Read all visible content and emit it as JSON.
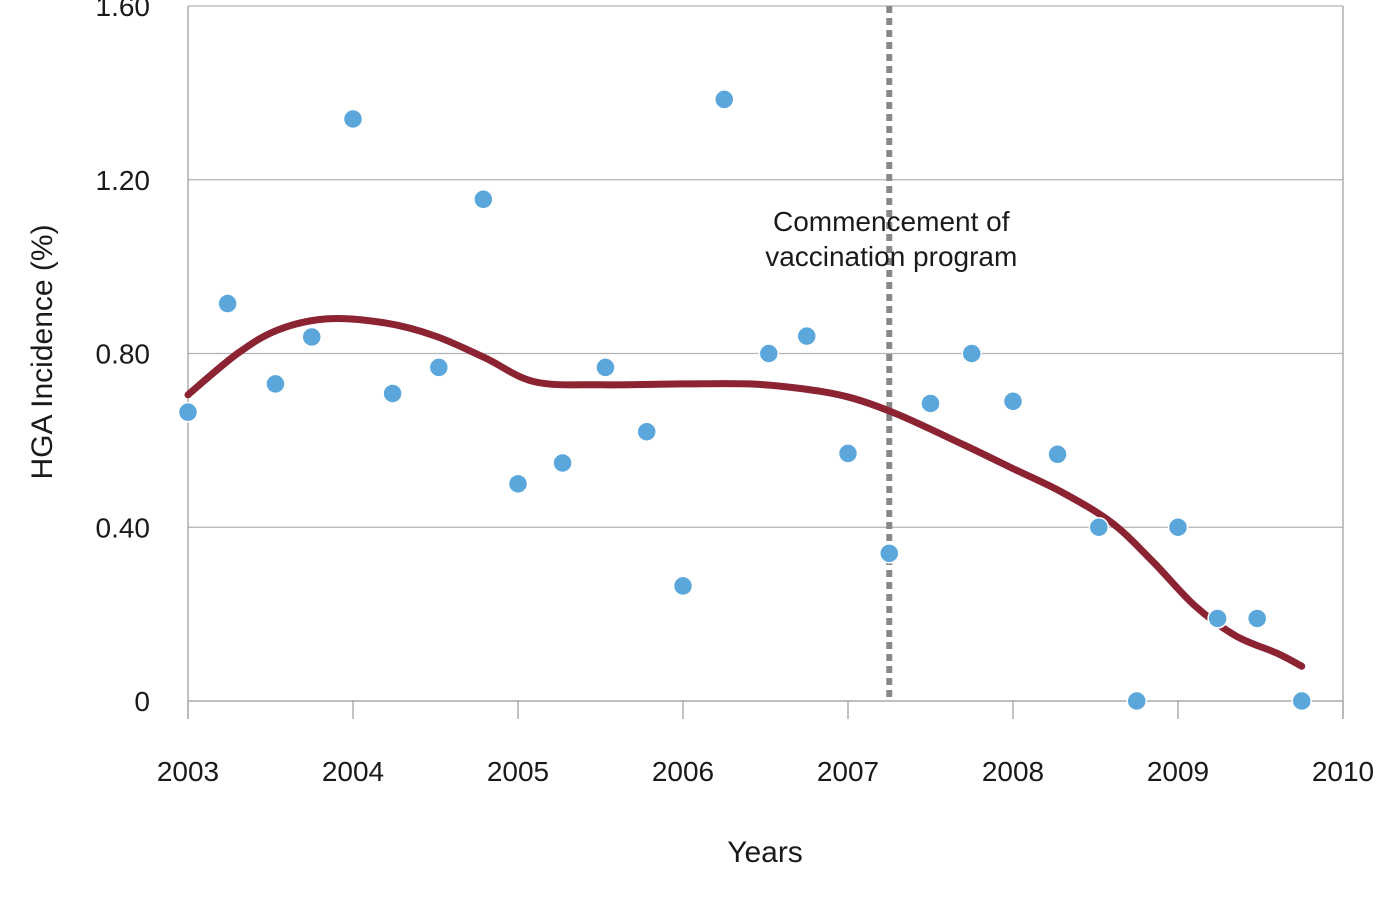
{
  "chart_data": {
    "type": "scatter",
    "title": "",
    "xlabel": "Years",
    "ylabel": "HGA Incidence (%)",
    "xlim": [
      2003,
      2010
    ],
    "ylim": [
      0,
      1.6
    ],
    "x_ticks": [
      2003,
      2004,
      2005,
      2006,
      2007,
      2008,
      2009,
      2010
    ],
    "x_tick_labels": [
      "2003",
      "2004",
      "2005",
      "2006",
      "2007",
      "2008",
      "2009",
      "2010"
    ],
    "y_ticks": [
      0,
      0.4,
      0.8,
      1.2,
      1.6
    ],
    "y_tick_labels": [
      "0",
      "0.40",
      "0.80",
      "1.20",
      "1.60"
    ],
    "grid": true,
    "colors": {
      "points": "#5ba7dc",
      "trend": "#8b2332",
      "vline": "#888888",
      "grid": "#b3b3b3",
      "axis": "#999999"
    },
    "series": [
      {
        "type": "scatter",
        "points": [
          [
            2003.0,
            0.665
          ],
          [
            2003.24,
            0.915
          ],
          [
            2003.53,
            0.73
          ],
          [
            2003.75,
            0.838
          ],
          [
            2004.0,
            1.34
          ],
          [
            2004.24,
            0.708
          ],
          [
            2004.52,
            0.768
          ],
          [
            2004.79,
            1.155
          ],
          [
            2005.0,
            0.5
          ],
          [
            2005.27,
            0.548
          ],
          [
            2005.53,
            0.768
          ],
          [
            2005.78,
            0.62
          ],
          [
            2006.0,
            0.265
          ],
          [
            2006.25,
            1.385
          ],
          [
            2006.52,
            0.8
          ],
          [
            2006.75,
            0.84
          ],
          [
            2007.0,
            0.57
          ],
          [
            2007.25,
            0.34
          ],
          [
            2007.5,
            0.685
          ],
          [
            2007.75,
            0.8
          ],
          [
            2008.0,
            0.69
          ],
          [
            2008.27,
            0.568
          ],
          [
            2008.52,
            0.4
          ],
          [
            2008.75,
            0.0
          ],
          [
            2009.0,
            0.4
          ],
          [
            2009.24,
            0.19
          ],
          [
            2009.48,
            0.19
          ],
          [
            2009.75,
            0.0
          ]
        ]
      },
      {
        "type": "line",
        "smooth": true,
        "points": [
          [
            2003.0,
            0.705
          ],
          [
            2003.3,
            0.8
          ],
          [
            2003.55,
            0.855
          ],
          [
            2003.85,
            0.88
          ],
          [
            2004.2,
            0.87
          ],
          [
            2004.5,
            0.84
          ],
          [
            2004.8,
            0.79
          ],
          [
            2005.1,
            0.735
          ],
          [
            2005.5,
            0.728
          ],
          [
            2006.0,
            0.73
          ],
          [
            2006.4,
            0.73
          ],
          [
            2006.7,
            0.72
          ],
          [
            2007.0,
            0.7
          ],
          [
            2007.3,
            0.66
          ],
          [
            2007.7,
            0.59
          ],
          [
            2008.0,
            0.535
          ],
          [
            2008.3,
            0.48
          ],
          [
            2008.6,
            0.41
          ],
          [
            2008.85,
            0.32
          ],
          [
            2009.1,
            0.22
          ],
          [
            2009.35,
            0.15
          ],
          [
            2009.6,
            0.11
          ],
          [
            2009.75,
            0.08
          ]
        ]
      }
    ],
    "annotations": [
      {
        "type": "vline",
        "x": 2007.25,
        "style": "dotted",
        "text": [
          "Commencement of",
          "vaccination program"
        ]
      }
    ]
  }
}
